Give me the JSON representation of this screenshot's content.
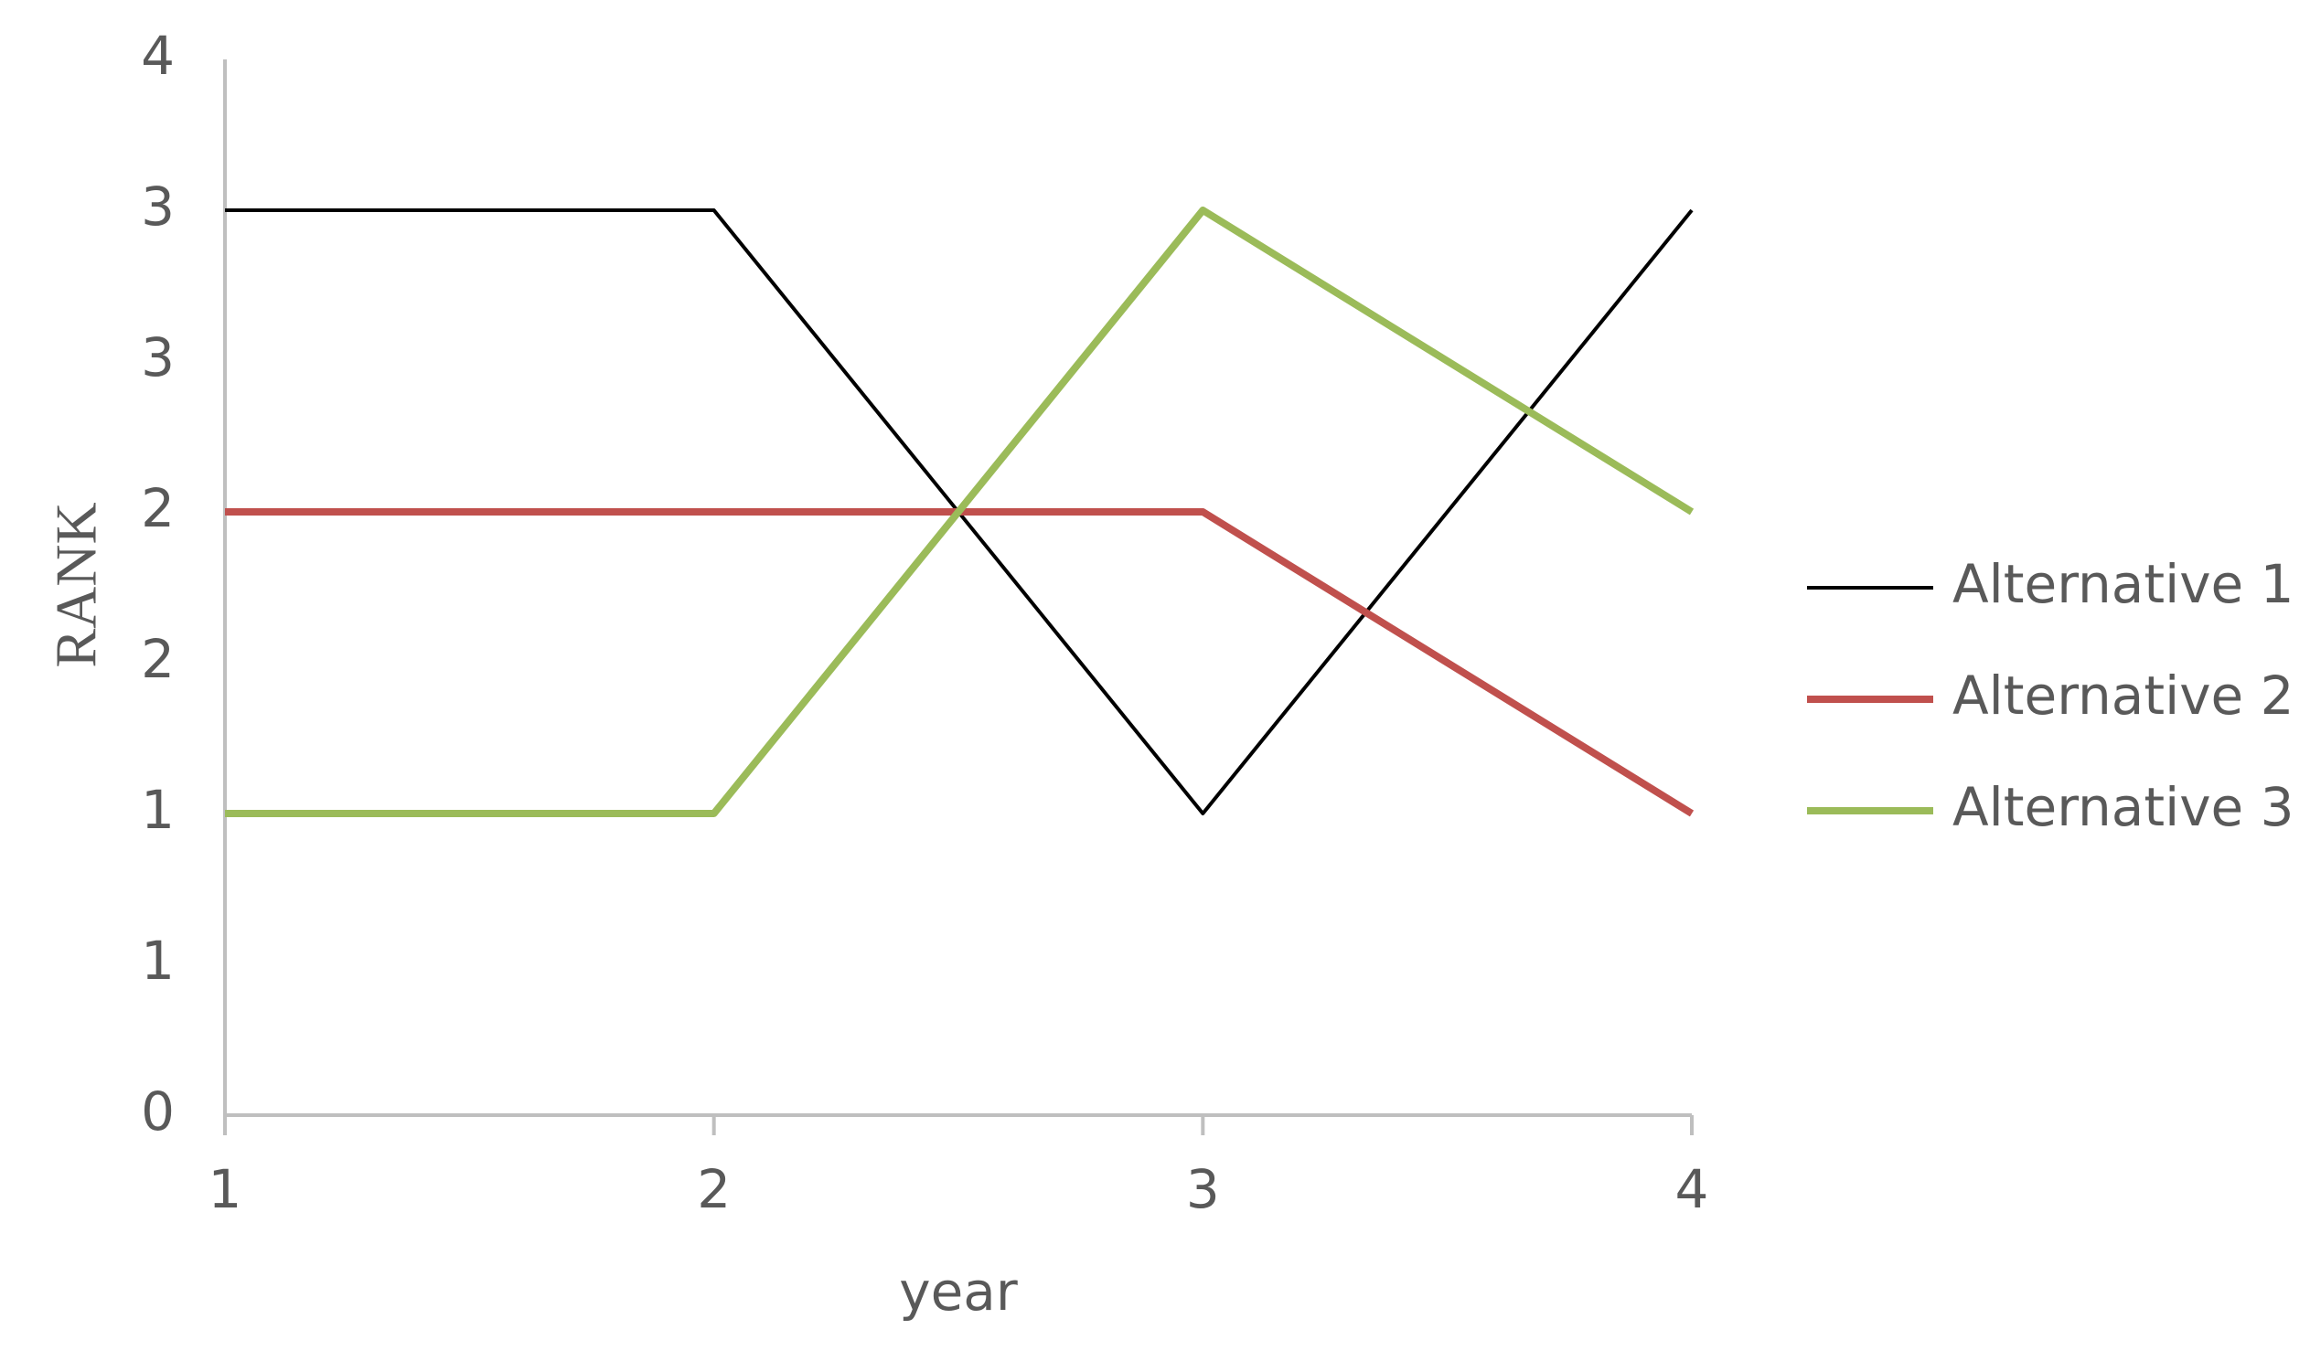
{
  "chart_data": {
    "type": "line",
    "x_label": "year",
    "y_label": "RANK",
    "x": [
      1,
      2,
      3,
      4
    ],
    "xlim": [
      1,
      4
    ],
    "xticks": [
      1,
      2,
      3,
      4
    ],
    "ylim": [
      0,
      3.5
    ],
    "yticks": [
      0,
      {
        "value": 0.5,
        "label": "1"
      },
      1,
      {
        "value": 1.5,
        "label": "2"
      },
      2,
      {
        "value": 2.5,
        "label": "3"
      },
      3,
      {
        "value": 3.5,
        "label": "4"
      }
    ],
    "grid": false,
    "legend": "right",
    "series": [
      {
        "name": "Alternative 1",
        "color": "#000000",
        "values": [
          3,
          3,
          1,
          3
        ]
      },
      {
        "name": "Alternative 2",
        "color": "#c0504d",
        "values": [
          2,
          2,
          2,
          1
        ]
      },
      {
        "name": "Alternative 3",
        "color": "#9bbb59",
        "values": [
          1,
          1,
          3,
          2
        ]
      }
    ]
  }
}
